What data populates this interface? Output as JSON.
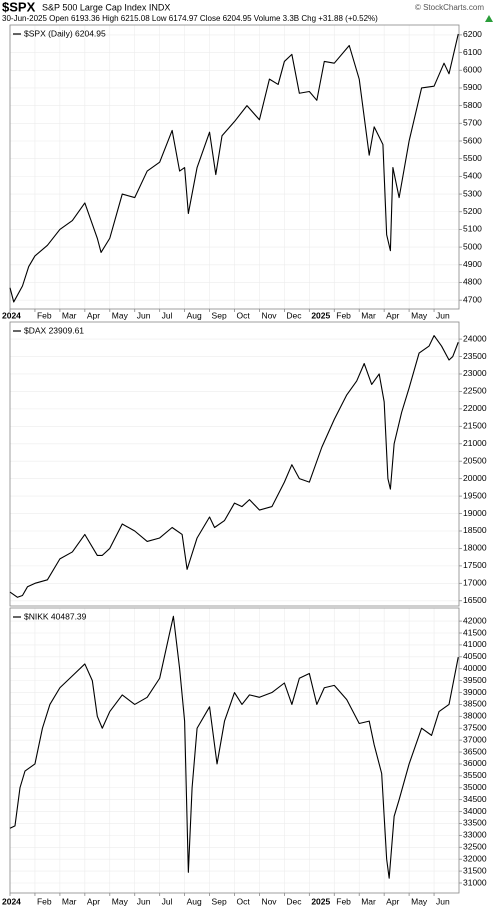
{
  "chart_data": [
    {
      "type": "line",
      "title": "$SPX",
      "subtitle": "S&P 500 Large Cap Index INDX",
      "quote": "30-Jun-2025  Open 6193.36  High 6215.08  Low 6174.97  Close 6204.95  Volume 3.3B  Chg +31.88 (+0.52%)",
      "credit": "© StockCharts.com",
      "x": [
        0,
        0.15,
        0.5,
        0.75,
        1.0,
        1.5,
        2.0,
        2.5,
        3.0,
        3.5,
        3.65,
        4.0,
        4.5,
        5.0,
        5.5,
        6.0,
        6.5,
        6.8,
        7.0,
        7.15,
        7.5,
        8.0,
        8.25,
        8.5,
        9.0,
        9.5,
        10.0,
        10.4,
        10.75,
        11.0,
        11.3,
        11.6,
        12.0,
        12.3,
        12.6,
        13.0,
        13.6,
        14.0,
        14.4,
        14.6,
        14.95,
        15.1,
        15.25,
        15.35,
        15.6,
        16.0,
        16.5,
        17.0,
        17.4,
        17.6,
        17.97
      ],
      "series": [
        {
          "name": "$SPX (Daily) 6204.95",
          "color": "#000000",
          "values": [
            4770,
            4690,
            4780,
            4890,
            4950,
            5010,
            5100,
            5150,
            5250,
            5050,
            4970,
            5050,
            5300,
            5280,
            5430,
            5480,
            5660,
            5430,
            5450,
            5190,
            5450,
            5650,
            5410,
            5630,
            5710,
            5800,
            5720,
            5950,
            5920,
            6050,
            6090,
            5870,
            5880,
            5830,
            6050,
            6040,
            6140,
            5950,
            5520,
            5680,
            5580,
            5070,
            4980,
            5450,
            5280,
            5600,
            5900,
            5910,
            6040,
            5980,
            6204.95
          ]
        }
      ],
      "xlim": [
        0,
        18
      ],
      "xticks": [
        {
          "value": 0,
          "label": "2024"
        },
        {
          "value": 1,
          "label": "Feb"
        },
        {
          "value": 2,
          "label": "Mar"
        },
        {
          "value": 3,
          "label": "Apr"
        },
        {
          "value": 4,
          "label": "May"
        },
        {
          "value": 5,
          "label": "Jun"
        },
        {
          "value": 6,
          "label": "Jul"
        },
        {
          "value": 7,
          "label": "Aug"
        },
        {
          "value": 8,
          "label": "Sep"
        },
        {
          "value": 9,
          "label": "Oct"
        },
        {
          "value": 10,
          "label": "Nov"
        },
        {
          "value": 11,
          "label": "Dec"
        },
        {
          "value": 12,
          "label": "2025"
        },
        {
          "value": 13,
          "label": "Feb"
        },
        {
          "value": 14,
          "label": "Mar"
        },
        {
          "value": 15,
          "label": "Apr"
        },
        {
          "value": 16,
          "label": "May"
        },
        {
          "value": 17,
          "label": "Jun"
        }
      ],
      "ylim": [
        4650,
        6256
      ],
      "yticks": [
        4700,
        4800,
        4900,
        5000,
        5100,
        5200,
        5300,
        5400,
        5500,
        5600,
        5700,
        5800,
        5900,
        6000,
        6100,
        6200
      ],
      "grid": true
    },
    {
      "type": "line",
      "x": [
        0,
        0.3,
        0.5,
        0.7,
        1.0,
        1.5,
        2.0,
        2.5,
        3.0,
        3.5,
        3.7,
        4.0,
        4.5,
        5.0,
        5.5,
        6.0,
        6.5,
        6.9,
        7.1,
        7.5,
        8.0,
        8.2,
        8.6,
        9.0,
        9.3,
        9.6,
        10.0,
        10.5,
        11.0,
        11.3,
        11.6,
        12.0,
        12.5,
        13.0,
        13.5,
        13.9,
        14.2,
        14.5,
        14.8,
        15.0,
        15.15,
        15.25,
        15.4,
        15.7,
        16.0,
        16.4,
        16.8,
        17.0,
        17.3,
        17.6,
        17.75,
        17.97
      ],
      "series": [
        {
          "name": "$DAX 23909.61",
          "color": "#000000",
          "values": [
            16750,
            16600,
            16650,
            16900,
            17000,
            17100,
            17700,
            17900,
            18400,
            17800,
            17800,
            18000,
            18700,
            18500,
            18200,
            18300,
            18600,
            18400,
            17400,
            18300,
            18900,
            18600,
            18800,
            19300,
            19200,
            19400,
            19100,
            19200,
            19900,
            20400,
            20000,
            19900,
            20900,
            21700,
            22400,
            22800,
            23300,
            22700,
            23000,
            22200,
            20000,
            19700,
            21000,
            21900,
            22600,
            23600,
            23800,
            24100,
            23800,
            23400,
            23500,
            23909.61
          ]
        }
      ],
      "xlim": [
        0,
        18
      ],
      "ylim": [
        16350,
        24490
      ],
      "yticks": [
        16500,
        17000,
        17500,
        18000,
        18500,
        19000,
        19500,
        20000,
        20500,
        21000,
        21500,
        22000,
        22500,
        23000,
        23500,
        24000
      ],
      "grid": true
    },
    {
      "type": "line",
      "x": [
        0,
        0.2,
        0.4,
        0.6,
        1.0,
        1.3,
        1.6,
        2.0,
        2.5,
        3.0,
        3.3,
        3.5,
        3.7,
        4.0,
        4.5,
        5.0,
        5.5,
        6.0,
        6.4,
        6.55,
        6.8,
        7.0,
        7.15,
        7.3,
        7.5,
        8.0,
        8.3,
        8.6,
        9.0,
        9.3,
        9.6,
        10.0,
        10.5,
        11.0,
        11.3,
        11.6,
        12.0,
        12.3,
        12.6,
        13.0,
        13.5,
        14.0,
        14.4,
        14.6,
        14.9,
        15.1,
        15.2,
        15.4,
        15.6,
        16.0,
        16.5,
        16.9,
        17.2,
        17.6,
        17.97
      ],
      "series": [
        {
          "name": "$NIKK 40487.39",
          "color": "#000000",
          "values": [
            33300,
            33400,
            35000,
            35700,
            36000,
            37500,
            38500,
            39200,
            39700,
            40200,
            39500,
            38000,
            37500,
            38200,
            38900,
            38500,
            38800,
            39600,
            41500,
            42200,
            40000,
            37800,
            31450,
            35000,
            37500,
            38400,
            36000,
            37800,
            39000,
            38500,
            38900,
            38800,
            39000,
            39400,
            38500,
            39600,
            39800,
            38500,
            39200,
            39300,
            38700,
            37700,
            37800,
            36800,
            35600,
            32000,
            31200,
            33800,
            34500,
            36000,
            37500,
            37200,
            38200,
            38500,
            40487.39
          ]
        }
      ],
      "xlim": [
        0,
        18
      ],
      "xticks": [
        {
          "value": 0,
          "label": "2024"
        },
        {
          "value": 1,
          "label": "Feb"
        },
        {
          "value": 2,
          "label": "Mar"
        },
        {
          "value": 3,
          "label": "Apr"
        },
        {
          "value": 4,
          "label": "May"
        },
        {
          "value": 5,
          "label": "Jun"
        },
        {
          "value": 6,
          "label": "Jul"
        },
        {
          "value": 7,
          "label": "Aug"
        },
        {
          "value": 8,
          "label": "Sep"
        },
        {
          "value": 9,
          "label": "Oct"
        },
        {
          "value": 10,
          "label": "Nov"
        },
        {
          "value": 11,
          "label": "Dec"
        },
        {
          "value": 12,
          "label": "2025"
        },
        {
          "value": 13,
          "label": "Feb"
        },
        {
          "value": 14,
          "label": "Mar"
        },
        {
          "value": 15,
          "label": "Apr"
        },
        {
          "value": 16,
          "label": "May"
        },
        {
          "value": 17,
          "label": "Jun"
        }
      ],
      "ylim": [
        30580,
        42550
      ],
      "yticks": [
        31000,
        31500,
        32000,
        32500,
        33000,
        33500,
        34000,
        34500,
        35000,
        35500,
        36000,
        36500,
        37000,
        37500,
        38000,
        38500,
        39000,
        39500,
        40000,
        40500,
        41000,
        41500,
        42000
      ],
      "grid": true
    }
  ]
}
